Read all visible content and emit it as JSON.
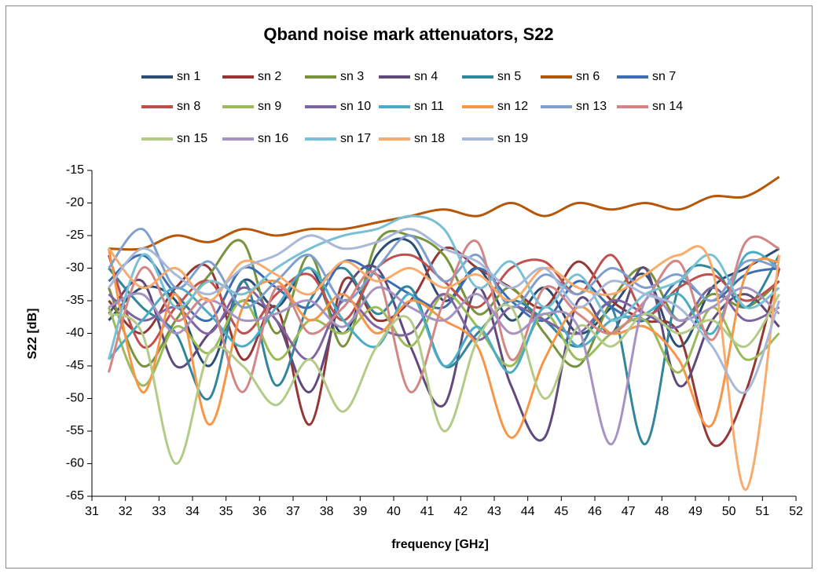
{
  "chart_data": {
    "type": "line",
    "title": "Qband noise mark attenuators, S22",
    "xlabel": "frequency [GHz]",
    "ylabel": "S22 [dB]",
    "x": [
      31.5,
      32.5,
      33.5,
      34.5,
      35.5,
      36.5,
      37.5,
      38.5,
      39.5,
      40.5,
      41.5,
      42.5,
      43.5,
      44.5,
      45.5,
      46.5,
      47.5,
      48.5,
      49.5,
      50.5,
      51.5
    ],
    "xlim": [
      31,
      52
    ],
    "xticks": [
      31,
      32,
      33,
      34,
      35,
      36,
      37,
      38,
      39,
      40,
      41,
      42,
      43,
      44,
      45,
      46,
      47,
      48,
      49,
      50,
      51,
      52
    ],
    "ylim": [
      -65,
      -15
    ],
    "yticks": [
      -65,
      -60,
      -55,
      -50,
      -45,
      -40,
      -35,
      -30,
      -25,
      -20,
      -15
    ],
    "grid": false,
    "legend": "top",
    "series": [
      {
        "name": "sn 1",
        "color": "#2c4d75",
        "values": [
          -38,
          -33,
          -35,
          -45,
          -32,
          -36,
          -30,
          -40,
          -28,
          -26,
          -35,
          -30,
          -38,
          -33,
          -40,
          -36,
          -31,
          -42,
          -33,
          -30,
          -27
        ]
      },
      {
        "name": "sn 2",
        "color": "#953735",
        "values": [
          -35,
          -40,
          -33,
          -30,
          -44,
          -36,
          -54,
          -32,
          -38,
          -35,
          -27,
          -30,
          -33,
          -36,
          -29,
          -35,
          -38,
          -40,
          -57,
          -49,
          -30
        ]
      },
      {
        "name": "sn 3",
        "color": "#77933c",
        "values": [
          -33,
          -45,
          -38,
          -31,
          -26,
          -40,
          -28,
          -42,
          -26,
          -25,
          -28,
          -37,
          -33,
          -40,
          -45,
          -35,
          -30,
          -38,
          -34,
          -36,
          -32
        ]
      },
      {
        "name": "sn 4",
        "color": "#604a7b",
        "values": [
          -37,
          -32,
          -45,
          -40,
          -35,
          -38,
          -49,
          -34,
          -30,
          -42,
          -51,
          -33,
          -48,
          -56,
          -35,
          -40,
          -30,
          -48,
          -38,
          -34,
          -39
        ]
      },
      {
        "name": "sn 5",
        "color": "#31859c",
        "values": [
          -30,
          -36,
          -40,
          -50,
          -32,
          -48,
          -35,
          -30,
          -37,
          -33,
          -45,
          -40,
          -35,
          -38,
          -42,
          -36,
          -57,
          -33,
          -30,
          -36,
          -28
        ]
      },
      {
        "name": "sn 6",
        "color": "#b65708",
        "values": [
          -27,
          -27,
          -25,
          -26,
          -24,
          -25,
          -24,
          -24,
          -23,
          -22,
          -21,
          -22,
          -20,
          -22,
          -20,
          -21,
          -20,
          -21,
          -19,
          -19,
          -16
        ]
      },
      {
        "name": "sn 7",
        "color": "#3c6eb4",
        "values": [
          -32,
          -28,
          -34,
          -38,
          -30,
          -33,
          -36,
          -29,
          -31,
          -34,
          -36,
          -30,
          -35,
          -38,
          -32,
          -36,
          -38,
          -32,
          -35,
          -31,
          -30
        ]
      },
      {
        "name": "sn 8",
        "color": "#c0504d",
        "values": [
          -28,
          -42,
          -36,
          -32,
          -40,
          -34,
          -31,
          -38,
          -30,
          -28,
          -32,
          -36,
          -30,
          -29,
          -34,
          -28,
          -37,
          -33,
          -31,
          -35,
          -32
        ]
      },
      {
        "name": "sn 9",
        "color": "#9bbb59",
        "values": [
          -36,
          -48,
          -39,
          -43,
          -35,
          -44,
          -38,
          -40,
          -36,
          -42,
          -34,
          -39,
          -45,
          -37,
          -44,
          -40,
          -38,
          -46,
          -36,
          -44,
          -40
        ]
      },
      {
        "name": "sn 10",
        "color": "#8064a2",
        "values": [
          -34,
          -38,
          -36,
          -40,
          -33,
          -38,
          -44,
          -35,
          -39,
          -40,
          -34,
          -41,
          -36,
          -38,
          -40,
          -35,
          -37,
          -39,
          -33,
          -38,
          -36
        ]
      },
      {
        "name": "sn 11",
        "color": "#4bacc6",
        "values": [
          -44,
          -38,
          -33,
          -37,
          -42,
          -36,
          -30,
          -38,
          -42,
          -34,
          -45,
          -39,
          -46,
          -36,
          -42,
          -38,
          -37,
          -34,
          -40,
          -28,
          -30
        ]
      },
      {
        "name": "sn 12",
        "color": "#f79646",
        "values": [
          -27,
          -49,
          -34,
          -54,
          -36,
          -32,
          -38,
          -34,
          -40,
          -35,
          -38,
          -42,
          -56,
          -44,
          -36,
          -40,
          -39,
          -44,
          -54,
          -31,
          -29
        ]
      },
      {
        "name": "sn 13",
        "color": "#7f9fcf",
        "values": [
          -30,
          -24,
          -33,
          -29,
          -36,
          -32,
          -28,
          -35,
          -30,
          -25,
          -32,
          -28,
          -36,
          -31,
          -34,
          -30,
          -33,
          -31,
          -35,
          -29,
          -30
        ]
      },
      {
        "name": "sn 14",
        "color": "#d38683",
        "values": [
          -46,
          -30,
          -38,
          -35,
          -49,
          -33,
          -40,
          -36,
          -31,
          -49,
          -35,
          -26,
          -44,
          -33,
          -37,
          -40,
          -35,
          -29,
          -41,
          -26,
          -27
        ]
      },
      {
        "name": "sn 15",
        "color": "#b3cb86",
        "values": [
          -37,
          -40,
          -60,
          -43,
          -45,
          -51,
          -44,
          -52,
          -42,
          -38,
          -55,
          -41,
          -36,
          -50,
          -39,
          -42,
          -37,
          -40,
          -38,
          -42,
          -34
        ]
      },
      {
        "name": "sn 16",
        "color": "#a692c3",
        "values": [
          -36,
          -34,
          -40,
          -35,
          -38,
          -37,
          -35,
          -39,
          -33,
          -36,
          -38,
          -34,
          -40,
          -37,
          -39,
          -57,
          -35,
          -38,
          -36,
          -33,
          -37
        ]
      },
      {
        "name": "sn 17",
        "color": "#78c0d4",
        "values": [
          -44,
          -28,
          -36,
          -32,
          -34,
          -30,
          -27,
          -25,
          -24,
          -22,
          -24,
          -33,
          -29,
          -36,
          -31,
          -38,
          -34,
          -32,
          -28,
          -36,
          -33
        ]
      },
      {
        "name": "sn 18",
        "color": "#f9ab6b",
        "values": [
          -27,
          -33,
          -30,
          -35,
          -29,
          -31,
          -34,
          -29,
          -32,
          -30,
          -33,
          -31,
          -35,
          -30,
          -33,
          -34,
          -31,
          -28,
          -30,
          -64,
          -28
        ]
      },
      {
        "name": "sn 19",
        "color": "#a7b8d9",
        "values": [
          -33,
          -27,
          -31,
          -34,
          -30,
          -28,
          -25,
          -27,
          -26,
          -24,
          -27,
          -29,
          -33,
          -30,
          -36,
          -32,
          -34,
          -36,
          -42,
          -49,
          -35
        ]
      }
    ]
  }
}
